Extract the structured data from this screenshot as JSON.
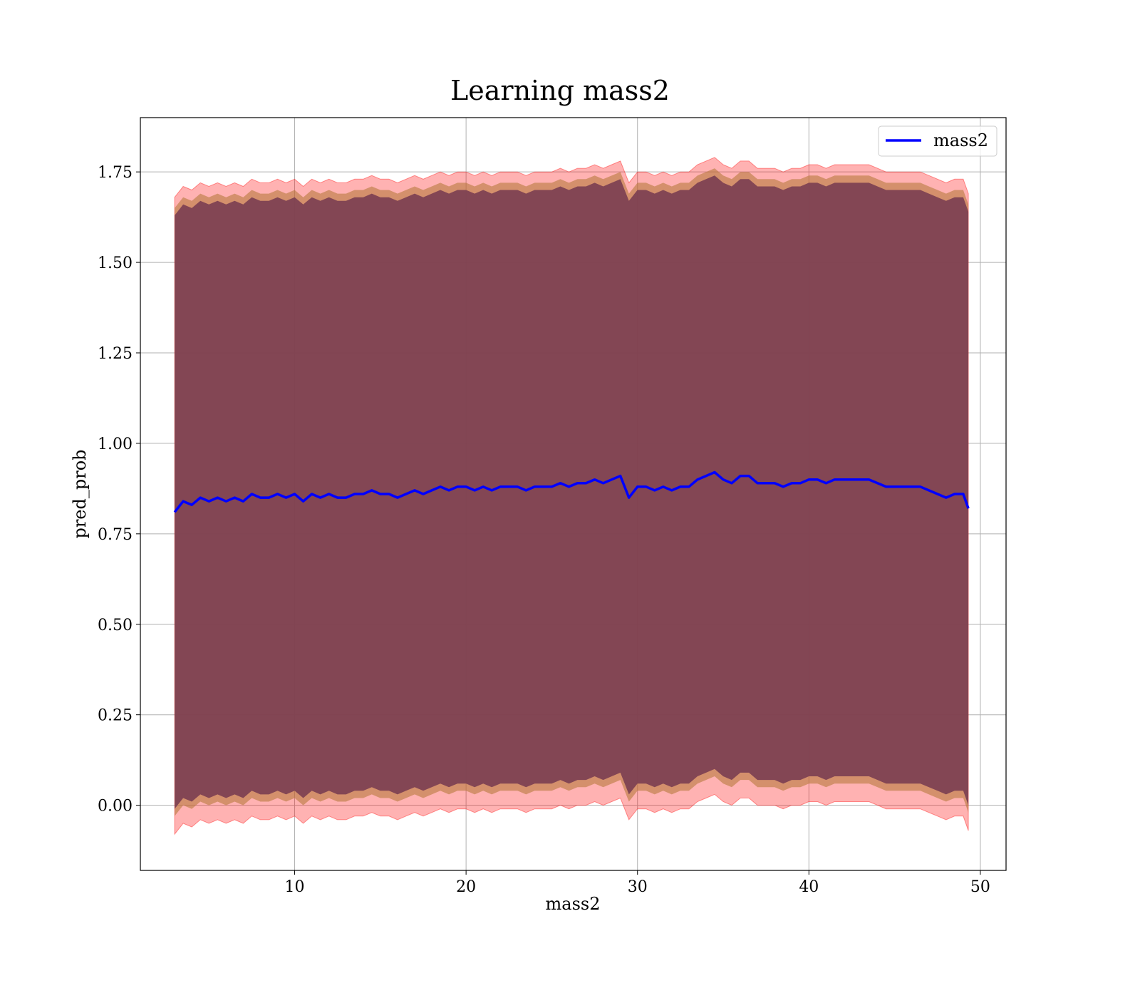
{
  "chart_data": {
    "type": "line",
    "title": "Learning mass2",
    "xlabel": "mass2",
    "ylabel": "pred_prob",
    "xlim": [
      1.0,
      51.5
    ],
    "ylim": [
      -0.18,
      1.9
    ],
    "xticks": [
      10,
      20,
      30,
      40,
      50
    ],
    "xtick_labels": [
      "10",
      "20",
      "30",
      "40",
      "50"
    ],
    "yticks": [
      0.0,
      0.25,
      0.5,
      0.75,
      1.0,
      1.25,
      1.5,
      1.75
    ],
    "ytick_labels": [
      "0.00",
      "0.25",
      "0.50",
      "0.75",
      "1.00",
      "1.25",
      "1.50",
      "1.75"
    ],
    "grid": true,
    "legend_position": "top-right",
    "colors": {
      "line": "#0000ff",
      "outer_band": "#ff0000",
      "inner_band": "#7a3e52",
      "grid": "#b0b0b0"
    },
    "series": [
      {
        "name": "mass2",
        "x": [
          3.0,
          3.5,
          4.0,
          4.5,
          5.0,
          5.5,
          6.0,
          6.5,
          7.0,
          7.5,
          8.0,
          8.5,
          9.0,
          9.5,
          10.0,
          10.5,
          11.0,
          11.5,
          12.0,
          12.5,
          13.0,
          13.5,
          14.0,
          14.5,
          15.0,
          15.5,
          16.0,
          16.5,
          17.0,
          17.5,
          18.0,
          18.5,
          19.0,
          19.5,
          20.0,
          20.5,
          21.0,
          21.5,
          22.0,
          22.5,
          23.0,
          23.5,
          24.0,
          24.5,
          25.0,
          25.5,
          26.0,
          26.5,
          27.0,
          27.5,
          28.0,
          28.5,
          29.0,
          29.5,
          30.0,
          30.5,
          31.0,
          31.5,
          32.0,
          32.5,
          33.0,
          33.5,
          34.0,
          34.5,
          35.0,
          35.5,
          36.0,
          36.5,
          37.0,
          37.5,
          38.0,
          38.5,
          39.0,
          39.5,
          40.0,
          40.5,
          41.0,
          41.5,
          42.0,
          42.5,
          43.0,
          43.5,
          44.0,
          44.5,
          45.0,
          45.5,
          46.0,
          46.5,
          47.0,
          47.5,
          48.0,
          48.5,
          49.0,
          49.3
        ],
        "y": [
          0.81,
          0.84,
          0.83,
          0.85,
          0.84,
          0.85,
          0.84,
          0.85,
          0.84,
          0.86,
          0.85,
          0.85,
          0.86,
          0.85,
          0.86,
          0.84,
          0.86,
          0.85,
          0.86,
          0.85,
          0.85,
          0.86,
          0.86,
          0.87,
          0.86,
          0.86,
          0.85,
          0.86,
          0.87,
          0.86,
          0.87,
          0.88,
          0.87,
          0.88,
          0.88,
          0.87,
          0.88,
          0.87,
          0.88,
          0.88,
          0.88,
          0.87,
          0.88,
          0.88,
          0.88,
          0.89,
          0.88,
          0.89,
          0.89,
          0.9,
          0.89,
          0.9,
          0.91,
          0.85,
          0.88,
          0.88,
          0.87,
          0.88,
          0.87,
          0.88,
          0.88,
          0.9,
          0.91,
          0.92,
          0.9,
          0.89,
          0.91,
          0.91,
          0.89,
          0.89,
          0.89,
          0.88,
          0.89,
          0.89,
          0.9,
          0.9,
          0.89,
          0.9,
          0.9,
          0.9,
          0.9,
          0.9,
          0.89,
          0.88,
          0.88,
          0.88,
          0.88,
          0.88,
          0.87,
          0.86,
          0.85,
          0.86,
          0.86,
          0.82
        ]
      }
    ]
  }
}
